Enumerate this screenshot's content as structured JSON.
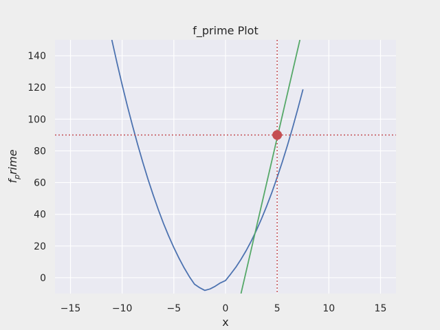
{
  "chart_data": {
    "type": "line",
    "title": "f_prime Plot",
    "xlabel": "x",
    "ylabel_base": "f",
    "ylabel_sub": "p",
    "ylabel_rest": "rime",
    "xlim": [
      -16.5,
      16.5
    ],
    "ylim": [
      -10,
      150
    ],
    "xticks": [
      -15,
      -10,
      -5,
      0,
      5,
      10,
      15
    ],
    "yticks": [
      0,
      20,
      40,
      60,
      80,
      100,
      120,
      140
    ],
    "grid": true,
    "series": [
      {
        "kind": "curve",
        "color": "#4c72b0",
        "x": [
          -11,
          -10.5,
          -10,
          -9.5,
          -9,
          -8.5,
          -8,
          -7.5,
          -7,
          -6.5,
          -6,
          -5.5,
          -5,
          -4.5,
          -4,
          -3.5,
          -3,
          -2.5,
          -2,
          -1.5,
          -1,
          -0.5,
          0,
          0.5,
          1,
          1.5,
          2,
          2.5,
          3,
          3.5,
          4,
          4.5,
          5,
          5.5,
          6,
          6.5,
          7,
          7.5
        ],
        "y": [
          150,
          135.5,
          121.6,
          108.4,
          95.9,
          84,
          72.7,
          62.1,
          52.2,
          42.9,
          34.2,
          26.3,
          19,
          12.3,
          6.2,
          0.7,
          -4.1,
          -6.3,
          -8,
          -7.1,
          -5.4,
          -3.3,
          -1.8,
          2.3,
          6.6,
          11.6,
          17.1,
          23.2,
          30,
          37.4,
          45.4,
          54,
          63.3,
          73.1,
          83.6,
          94.7,
          106.5,
          118.8
        ]
      },
      {
        "kind": "tangent",
        "color": "#55a868",
        "x": [
          1.5,
          7.2
        ],
        "y": [
          -10,
          150
        ]
      }
    ],
    "point": {
      "x": 5,
      "y": 90,
      "color": "#c44e52"
    },
    "ref_lines": {
      "x": 5,
      "y": 90,
      "color": "#c44e52"
    }
  }
}
